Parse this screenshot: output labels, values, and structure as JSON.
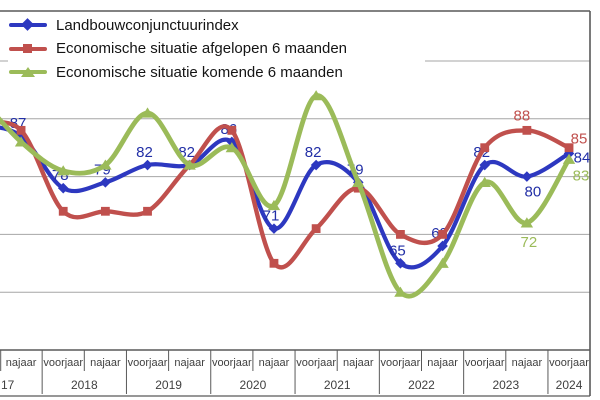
{
  "chart_data": {
    "type": "line",
    "title": "",
    "categories": [
      "najaar 2017",
      "voorjaar 2018",
      "najaar 2018",
      "voorjaar 2019",
      "najaar 2019",
      "voorjaar 2020",
      "najaar 2020",
      "voorjaar 2021",
      "najaar 2021",
      "voorjaar 2022",
      "najaar 2022",
      "voorjaar 2023",
      "najaar 2023",
      "voorjaar 2024"
    ],
    "x_axis": {
      "season_labels": [
        "najaar",
        "voorjaar",
        "najaar",
        "voorjaar",
        "najaar",
        "voorjaar",
        "najaar",
        "voorjaar",
        "najaar",
        "voorjaar",
        "najaar",
        "voorjaar",
        "najaar",
        "voorjaar"
      ],
      "year_labels": [
        {
          "label": "17",
          "seasons": 1
        },
        {
          "label": "2018",
          "seasons": 2
        },
        {
          "label": "2019",
          "seasons": 2
        },
        {
          "label": "2020",
          "seasons": 2
        },
        {
          "label": "2021",
          "seasons": 2
        },
        {
          "label": "2022",
          "seasons": 2
        },
        {
          "label": "2023",
          "seasons": 2
        },
        {
          "label": "2024",
          "seasons": 1
        }
      ]
    },
    "ylim": [
      50,
      110
    ],
    "gridline_values": [
      60,
      70,
      80,
      90,
      100
    ],
    "grid": true,
    "legend_position": "top-left",
    "series": [
      {
        "name": "Landbouwconjunctuurindex",
        "marker": "diamond",
        "color": "#2d38c0",
        "label_color": "#222fa6",
        "values": [
          87,
          78,
          79,
          82,
          82,
          86,
          71,
          82,
          79,
          65,
          68,
          82,
          80,
          84
        ],
        "labeled_points": [
          0,
          1,
          2,
          3,
          4,
          5,
          6,
          7,
          8,
          9,
          10,
          11,
          12,
          13
        ]
      },
      {
        "name": "Economische situatie afgelopen 6 maanden",
        "marker": "square",
        "color": "#c0504d",
        "label_color": "#c0504d",
        "values": [
          88,
          74,
          74,
          74,
          82,
          88,
          65,
          71,
          78,
          70,
          70,
          85,
          88,
          85
        ],
        "labeled_points": [
          12,
          13
        ]
      },
      {
        "name": "Economische situatie komende 6 maanden",
        "marker": "triangle",
        "color": "#9bbb59",
        "label_color": "#9bbb59",
        "values": [
          86,
          81,
          82,
          91,
          82,
          85,
          75,
          94,
          79,
          60,
          65,
          79,
          72,
          83
        ],
        "labeled_points": [
          12,
          13
        ]
      }
    ],
    "colors": {
      "gridline": "#a6a6a6",
      "border": "#595959",
      "axis_text": "#3f3f3f",
      "background": "#ffffff"
    }
  }
}
